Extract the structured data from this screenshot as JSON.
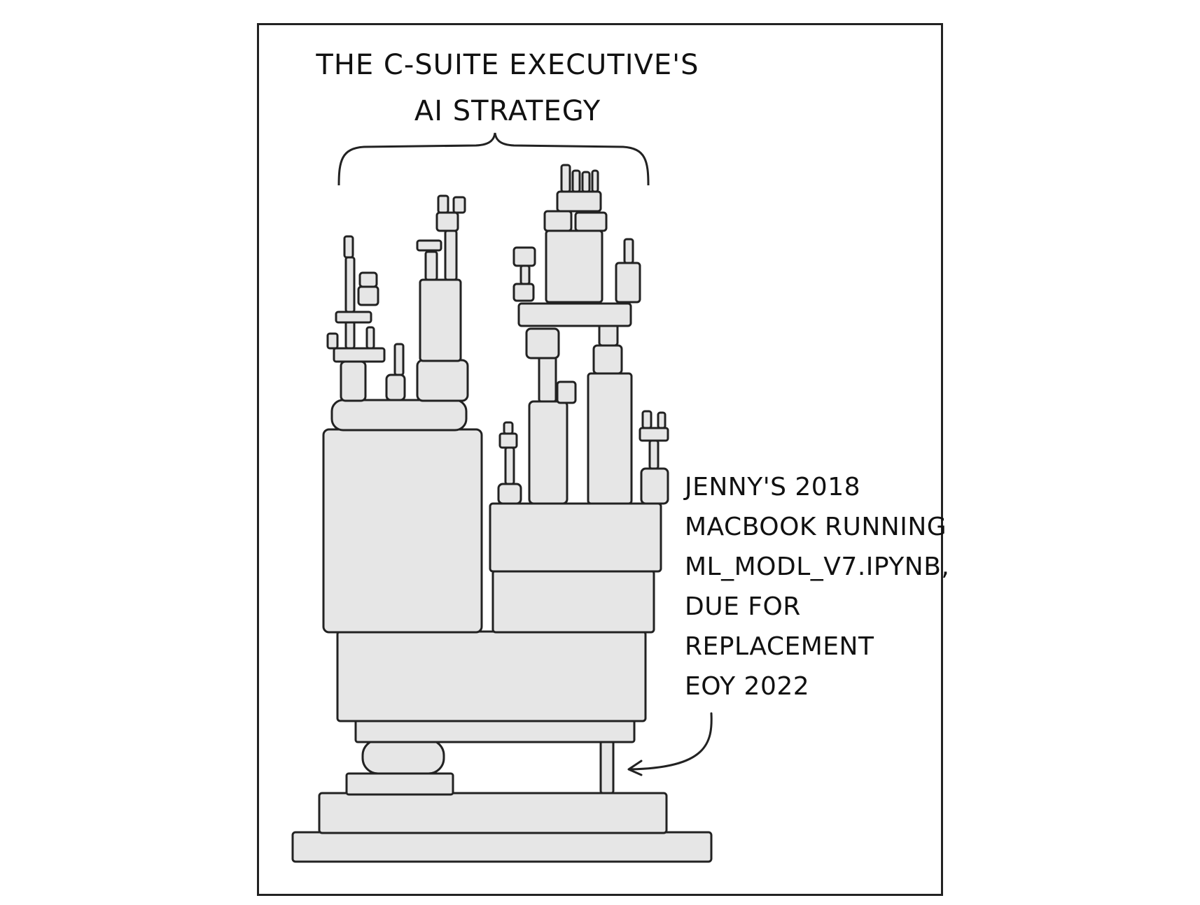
{
  "comic": {
    "title_lines": [
      "THE C-SUITE EXECUTIVE'S",
      "AI STRATEGY"
    ],
    "caption_lines": [
      "JENNY'S 2018",
      "MACBOOK RUNNING",
      "ML_MODL_V7.IPYNB,",
      "DUE FOR",
      "REPLACEMENT",
      "EOY 2022"
    ]
  }
}
